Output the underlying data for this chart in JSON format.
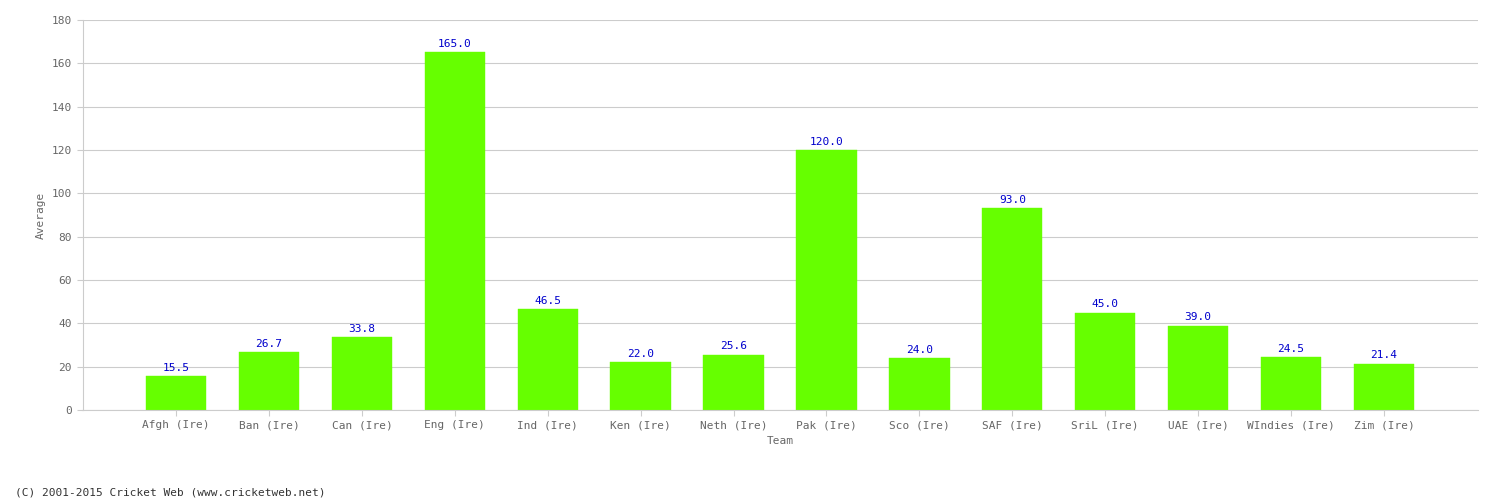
{
  "categories": [
    "Afgh (Ire)",
    "Ban (Ire)",
    "Can (Ire)",
    "Eng (Ire)",
    "Ind (Ire)",
    "Ken (Ire)",
    "Neth (Ire)",
    "Pak (Ire)",
    "Sco (Ire)",
    "SAF (Ire)",
    "SriL (Ire)",
    "UAE (Ire)",
    "WIndies (Ire)",
    "Zim (Ire)"
  ],
  "values": [
    15.5,
    26.7,
    33.8,
    165.0,
    46.5,
    22.0,
    25.6,
    120.0,
    24.0,
    93.0,
    45.0,
    39.0,
    24.5,
    21.4
  ],
  "bar_color": "#66ff00",
  "bar_edgecolor": "#66ff00",
  "label_color": "#0000cc",
  "xlabel": "Team",
  "ylabel": "Average",
  "ylim": [
    0,
    180
  ],
  "yticks": [
    0,
    20,
    40,
    60,
    80,
    100,
    120,
    140,
    160,
    180
  ],
  "grid_color": "#cccccc",
  "bg_color": "#ffffff",
  "footer": "(C) 2001-2015 Cricket Web (www.cricketweb.net)",
  "label_fontsize": 8,
  "axis_fontsize": 8,
  "tick_color": "#666666",
  "bar_width": 0.65
}
